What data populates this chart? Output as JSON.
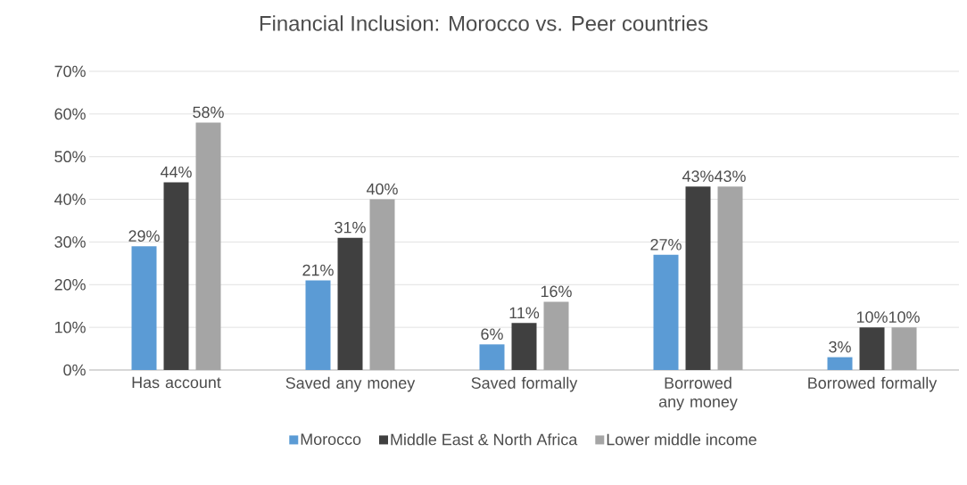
{
  "chart_data": {
    "type": "bar",
    "title": "Financial Inclusion: Morocco vs. Peer countries",
    "categories": [
      "Has account",
      "Saved any money",
      "Saved formally",
      "Borrowed any money",
      "Borrowed formally"
    ],
    "series": [
      {
        "name": "Morocco",
        "color": "#5b9bd5",
        "values": [
          29,
          21,
          6,
          27,
          3
        ],
        "value_labels": [
          "29%",
          "21%",
          "6%",
          "27%",
          "3%"
        ]
      },
      {
        "name": "Middle East & North Africa",
        "color": "#404040",
        "values": [
          44,
          31,
          11,
          43,
          10
        ],
        "value_labels": [
          "44%",
          "31%",
          "11%",
          "43%",
          "10%"
        ]
      },
      {
        "name": "Lower middle income",
        "color": "#a5a5a5",
        "values": [
          58,
          40,
          16,
          43,
          10
        ],
        "value_labels": [
          "58%",
          "40%",
          "16%",
          "43%",
          "10%"
        ]
      }
    ],
    "ylim": [
      0,
      70
    ],
    "yticks": [
      {
        "value": 0,
        "label": "0%"
      },
      {
        "value": 10,
        "label": "10%"
      },
      {
        "value": 20,
        "label": "20%"
      },
      {
        "value": 30,
        "label": "30%"
      },
      {
        "value": 40,
        "label": "40%"
      },
      {
        "value": 50,
        "label": "50%"
      },
      {
        "value": 60,
        "label": "60%"
      },
      {
        "value": 70,
        "label": "70%"
      }
    ],
    "grid": "y",
    "legend": "bottom"
  }
}
